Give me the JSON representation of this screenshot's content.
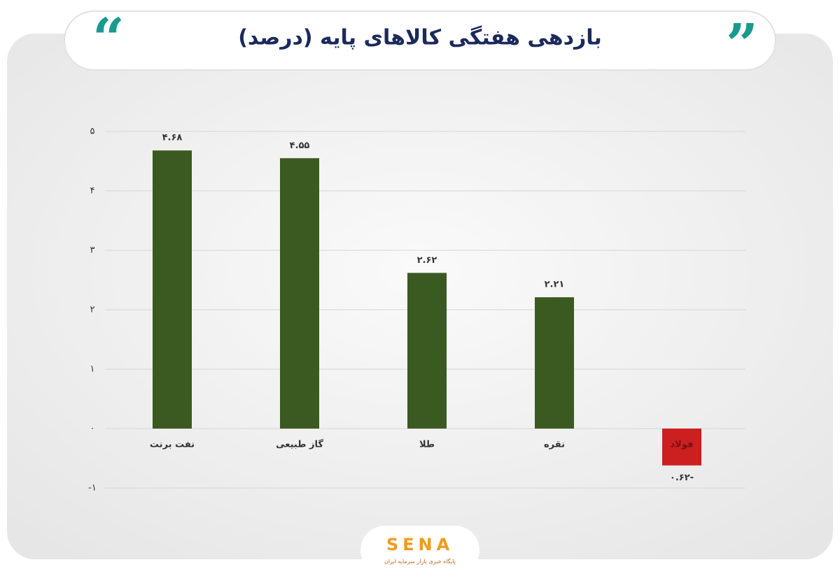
{
  "chart_data": {
    "type": "bar",
    "title": "بازدهی هفتگی کالاهای پایه (درصد)",
    "categories": [
      "نفت برنت",
      "گاز طبیعی",
      "طلا",
      "نقره",
      "فولاد"
    ],
    "values": [
      4.68,
      4.55,
      2.62,
      2.21,
      -0.62
    ],
    "value_labels": [
      "۴.۶۸",
      "۴.۵۵",
      "۲.۶۲",
      "۲.۲۱",
      "-۰.۶۲"
    ],
    "colors": [
      "#3b5a22",
      "#3b5a22",
      "#3b5a22",
      "#3b5a22",
      "#cc1f1f"
    ],
    "ylim": [
      -1,
      5
    ],
    "yticks": [
      {
        "value": -1,
        "label": "-۱"
      },
      {
        "value": 0,
        "label": "۰"
      },
      {
        "value": 1,
        "label": "۱"
      },
      {
        "value": 2,
        "label": "۲"
      },
      {
        "value": 3,
        "label": "۳"
      },
      {
        "value": 4,
        "label": "۴"
      },
      {
        "value": 5,
        "label": "۵"
      }
    ],
    "grid": true
  },
  "logo": {
    "name": "SENA",
    "tagline": "پایگاه خبری بازار سرمایه ایران"
  }
}
